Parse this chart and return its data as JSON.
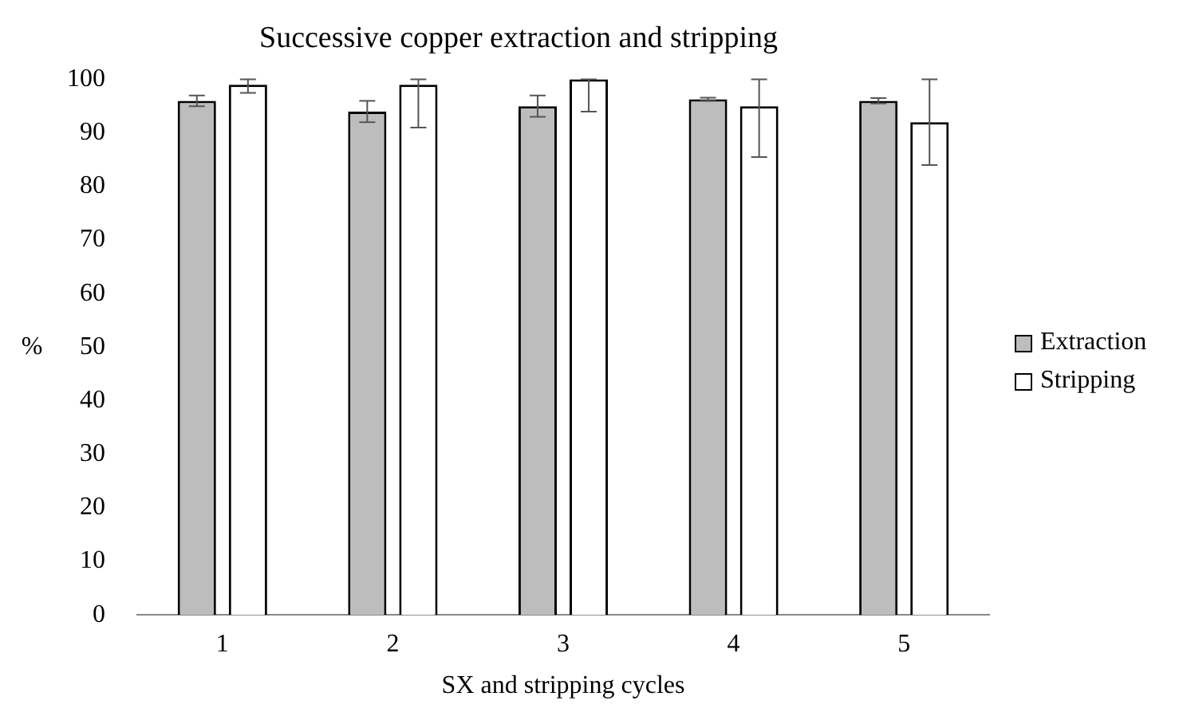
{
  "chart_data": {
    "type": "bar",
    "title": "Successive copper extraction and stripping",
    "xlabel": "SX and stripping cycles",
    "ylabel": "%",
    "categories": [
      "1",
      "2",
      "3",
      "4",
      "5"
    ],
    "series": [
      {
        "name": "Extraction",
        "color": "#bdbdbd",
        "values": [
          96,
          94,
          95,
          96.3,
          96
        ],
        "errors": [
          [
            95,
            97
          ],
          [
            92,
            96
          ],
          [
            93,
            97
          ],
          [
            96,
            96.6
          ],
          [
            95.5,
            96.5
          ]
        ]
      },
      {
        "name": "Stripping",
        "color": "#ffffff",
        "values": [
          99,
          99,
          100,
          95,
          92
        ],
        "errors": [
          [
            97.5,
            100
          ],
          [
            91,
            100
          ],
          [
            94,
            100
          ],
          [
            85.5,
            100
          ],
          [
            84,
            100
          ]
        ]
      }
    ],
    "ylim": [
      0,
      100
    ],
    "yticks": [
      0,
      10,
      20,
      30,
      40,
      50,
      60,
      70,
      80,
      90,
      100
    ],
    "grid": false,
    "legend": "right"
  }
}
